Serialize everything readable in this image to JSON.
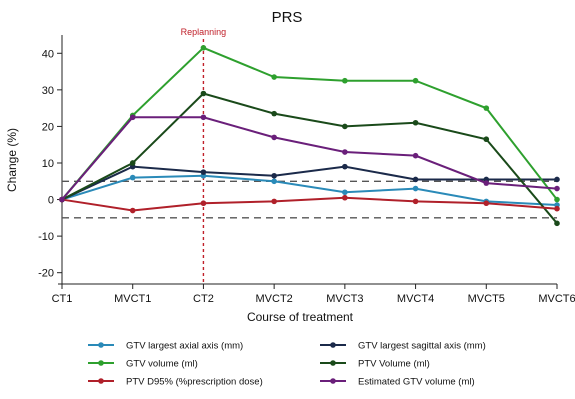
{
  "chart_data": {
    "type": "line",
    "title": "PRS",
    "xlabel": "Course of treatment",
    "ylabel": "Change (%)",
    "categories": [
      "CT1",
      "MVCT1",
      "CT2",
      "MVCT2",
      "MVCT3",
      "MVCT4",
      "MVCT5",
      "MVCT6"
    ],
    "ylim": [
      -22,
      45
    ],
    "yticks": [
      -20,
      -10,
      0,
      10,
      20,
      30,
      40
    ],
    "grid": false,
    "legend_position": "bottom",
    "reference_lines": [
      5,
      -5
    ],
    "annotation": {
      "text": "Replanning",
      "at_category": "CT2",
      "color": "#c0202a"
    },
    "series": [
      {
        "name": "GTV largest axial axis (mm)",
        "color": "#2a8ab8",
        "values": [
          0,
          6,
          6.5,
          5,
          2,
          3,
          -0.5,
          -1.5
        ]
      },
      {
        "name": "GTV largest sagittal axis (mm)",
        "color": "#1b2a4a",
        "values": [
          0,
          9,
          7.5,
          6.5,
          9,
          5.5,
          5.5,
          5.5
        ]
      },
      {
        "name": "GTV volume (ml)",
        "color": "#2ea02e",
        "values": [
          0,
          23,
          41.5,
          33.5,
          32.5,
          32.5,
          25,
          0
        ]
      },
      {
        "name": "PTV Volume (ml)",
        "color": "#1a4a1a",
        "values": [
          0,
          10,
          29,
          23.5,
          20,
          21,
          16.5,
          -6.5
        ]
      },
      {
        "name": "PTV D95% (%prescription dose)",
        "color": "#b0202a",
        "values": [
          0,
          -3,
          -1,
          -0.5,
          0.5,
          -0.5,
          -1,
          -2.5
        ]
      },
      {
        "name": "Estimated GTV volume (ml)",
        "color": "#6a1f7a",
        "values": [
          0,
          22.5,
          22.5,
          17,
          13,
          12,
          4.5,
          3
        ]
      }
    ]
  }
}
